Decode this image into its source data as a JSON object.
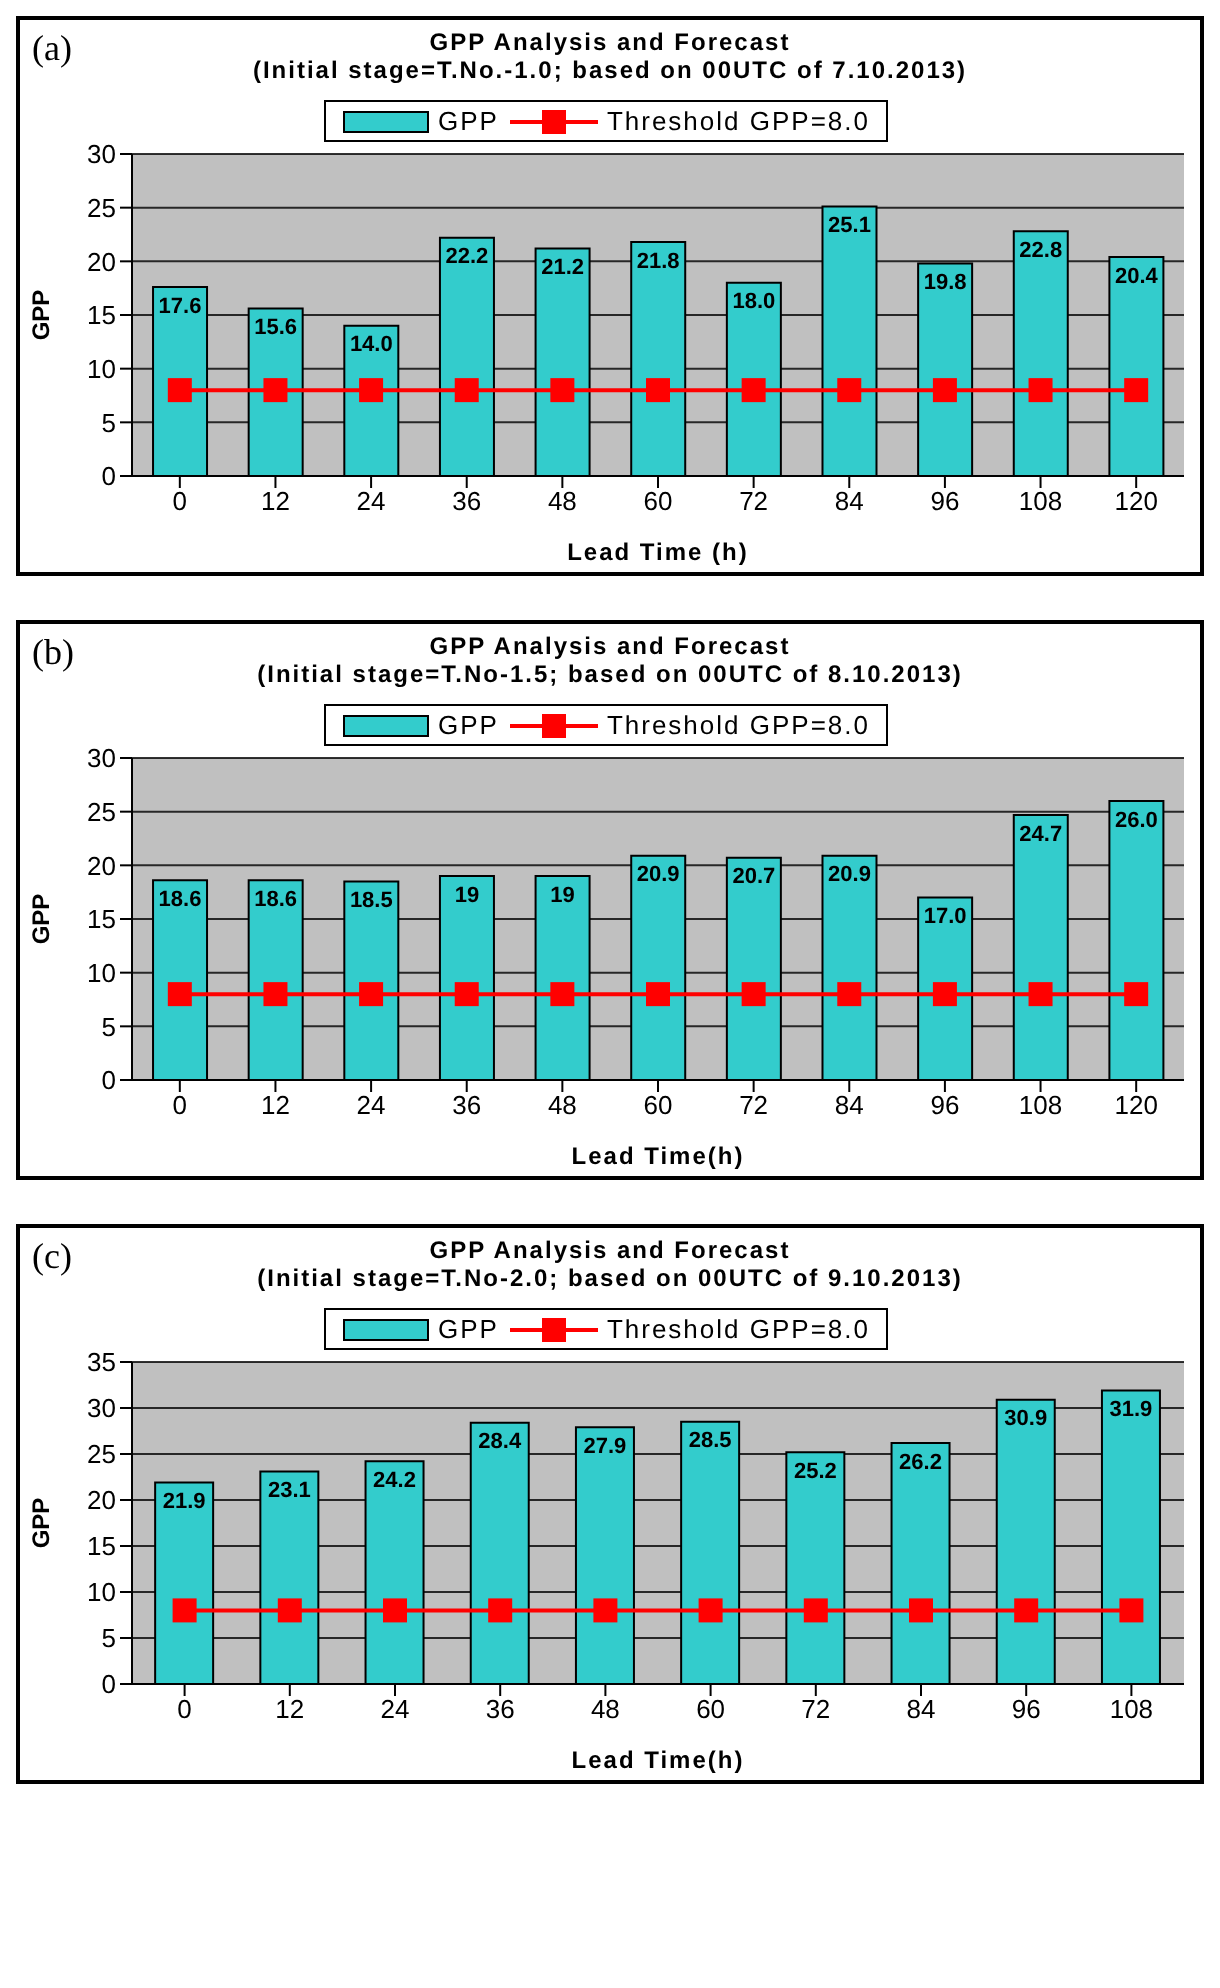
{
  "chart_data": [
    {
      "type": "bar",
      "title": "GPP Analysis and Forecast",
      "subtitle": "(Initial stage=T.No.-1.0; based on 00UTC of 7.10.2013)",
      "xlabel": "Lead Time (h)",
      "ylabel": "GPP",
      "annotations": [
        "(a)"
      ],
      "categories": [
        "0",
        "12",
        "24",
        "36",
        "48",
        "60",
        "72",
        "84",
        "96",
        "108",
        "120"
      ],
      "series": [
        {
          "name": "GPP",
          "color": "#33cccc",
          "values": [
            17.6,
            15.6,
            14.0,
            22.2,
            21.2,
            21.8,
            18.0,
            25.1,
            19.8,
            22.8,
            20.4
          ],
          "value_labels": [
            "17.6",
            "15.6",
            "14.0",
            "22.2",
            "21.2",
            "21.8",
            "18.0",
            "25.1",
            "19.8",
            "22.8",
            "20.4"
          ]
        },
        {
          "name": "Threshold GPP=8.0",
          "type": "line",
          "color": "#ff0000",
          "marker": "square",
          "line_style": "solid",
          "values": [
            8.0,
            8.0,
            8.0,
            8.0,
            8.0,
            8.0,
            8.0,
            8.0,
            8.0,
            8.0,
            8.0
          ]
        }
      ],
      "ylim": [
        0,
        30
      ],
      "yticks": [
        0,
        5,
        10,
        15,
        20,
        25,
        30
      ],
      "grid": "y",
      "legend": "top"
    },
    {
      "type": "bar",
      "title": "GPP Analysis and Forecast",
      "subtitle": "(Initial stage=T.No-1.5; based on 00UTC of 8.10.2013)",
      "xlabel": "Lead Time(h)",
      "ylabel": "GPP",
      "annotations": [
        "(b)"
      ],
      "categories": [
        "0",
        "12",
        "24",
        "36",
        "48",
        "60",
        "72",
        "84",
        "96",
        "108",
        "120"
      ],
      "series": [
        {
          "name": "GPP",
          "color": "#33cccc",
          "values": [
            18.6,
            18.6,
            18.5,
            19,
            19,
            20.9,
            20.7,
            20.9,
            17.0,
            24.7,
            26.0
          ],
          "value_labels": [
            "18.6",
            "18.6",
            "18.5",
            "19",
            "19",
            "20.9",
            "20.7",
            "20.9",
            "17.0",
            "24.7",
            "26.0"
          ]
        },
        {
          "name": "Threshold GPP=8.0",
          "type": "line",
          "color": "#ff0000",
          "marker": "square",
          "line_style": "solid",
          "values": [
            8.0,
            8.0,
            8.0,
            8.0,
            8.0,
            8.0,
            8.0,
            8.0,
            8.0,
            8.0,
            8.0
          ]
        }
      ],
      "ylim": [
        0,
        30
      ],
      "yticks": [
        0,
        5,
        10,
        15,
        20,
        25,
        30
      ],
      "grid": "y",
      "legend": "top"
    },
    {
      "type": "bar",
      "title": "GPP Analysis and Forecast",
      "subtitle": "(Initial stage=T.No-2.0; based on 00UTC of 9.10.2013)",
      "xlabel": "Lead Time(h)",
      "ylabel": "GPP",
      "annotations": [
        "(c)"
      ],
      "categories": [
        "0",
        "12",
        "24",
        "36",
        "48",
        "60",
        "72",
        "84",
        "96",
        "108"
      ],
      "series": [
        {
          "name": "GPP",
          "color": "#33cccc",
          "values": [
            21.9,
            23.1,
            24.2,
            28.4,
            27.9,
            28.5,
            25.2,
            26.2,
            30.9,
            31.9
          ],
          "value_labels": [
            "21.9",
            "23.1",
            "24.2",
            "28.4",
            "27.9",
            "28.5",
            "25.2",
            "26.2",
            "30.9",
            "31.9"
          ]
        },
        {
          "name": "Threshold GPP=8.0",
          "type": "line",
          "color": "#ff0000",
          "marker": "square",
          "line_style": "solid",
          "values": [
            8.0,
            8.0,
            8.0,
            8.0,
            8.0,
            8.0,
            8.0,
            8.0,
            8.0,
            8.0
          ]
        }
      ],
      "ylim": [
        0,
        35
      ],
      "yticks": [
        0,
        5,
        10,
        15,
        20,
        25,
        30,
        35
      ],
      "grid": "y",
      "legend": "top"
    }
  ]
}
